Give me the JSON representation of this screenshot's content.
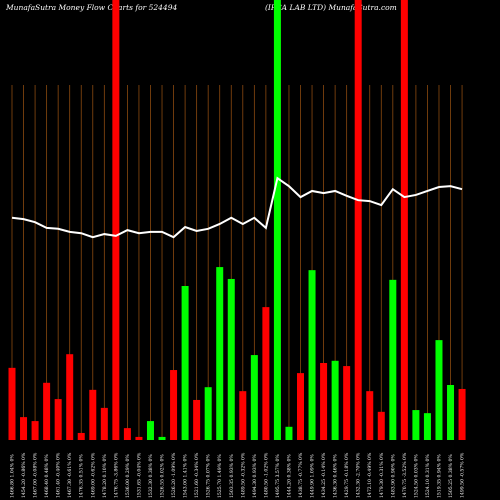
{
  "chart_data": {
    "type": "bar",
    "title": "MunafaSutra  Money Flow  Charts for 524494",
    "subtitle": "(IPCA LAB LTD) MunafaSutra.com",
    "categories": [
      "1466.80 1.04% 0%",
      "1454.20 -0.86% 0%",
      "1467.00 -0.08% 0%",
      "1468.40 0.48% 0%",
      "1461.40 -0.40% 0%",
      "1467.30 -0.61% 0%",
      "1476.35 0.51% 0%",
      "1469.00 -0.62% 0%",
      "1478.20 0.10% 0%",
      "1476.75 -3.86% 0%",
      "1536.00 0.29% 0%",
      "1531.65 -0.04% 0%",
      "1532.30 0.38% 0%",
      "1526.55 0.02% 0%",
      "1526.20 -1.09% 0%",
      "1543.00 1.41% 0%",
      "1521.60 -0.34% 0%",
      "1526.75 0.07% 0%",
      "1525.70 1.49% 0%",
      "1503.35 0.93% 0%",
      "1489.50 -0.32% 0%",
      "1494.30 0.93% 0%",
      "1480.50 -1.02% 0%",
      "1495.75 3.57% 0%",
      "1444.20 0.38% 0%",
      "1438.75 -0.77% 0%",
      "1449.90 1.09% 0%",
      "1434.25 -0.14% 0%",
      "1436.30 0.46% 0%",
      "1429.75 -0.18% 0%",
      "1432.30 -2.70% 0%",
      "1472.10 -0.49% 0%",
      "1479.30 -0.31% 0%",
      "1483.90 0.90% 0%",
      "1470.75 -3.52% 0%",
      "1524.50 0.03% 0%",
      "1524.10 0.31% 0%",
      "1519.35 0.94% 0%",
      "1505.25 0.38% 0%",
      "1499.50 -0.57% 0%"
    ],
    "values": [
      16.4,
      5.2,
      4.3,
      13.0,
      9.3,
      19.5,
      1.6,
      11.4,
      7.3,
      100,
      2.7,
      0.7,
      4.3,
      0.7,
      15.9,
      35.0,
      9.1,
      12.0,
      39.3,
      36.6,
      11.1,
      19.3,
      30.2,
      100,
      3.0,
      15.2,
      38.6,
      17.5,
      18.0,
      16.8,
      100,
      11.1,
      6.4,
      36.4,
      100,
      6.8,
      6.1,
      22.7,
      12.5,
      11.6
    ],
    "colors": [
      "#ff0000",
      "#ff0000",
      "#ff0000",
      "#ff0000",
      "#ff0000",
      "#ff0000",
      "#ff0000",
      "#ff0000",
      "#ff0000",
      "#ff0000",
      "#ff0000",
      "#ff0000",
      "#00ff00",
      "#00ff00",
      "#ff0000",
      "#00ff00",
      "#ff0000",
      "#00ff00",
      "#00ff00",
      "#00ff00",
      "#ff0000",
      "#00ff00",
      "#ff0000",
      "#00ff00",
      "#00ff00",
      "#ff0000",
      "#00ff00",
      "#ff0000",
      "#00ff00",
      "#ff0000",
      "#ff0000",
      "#ff0000",
      "#ff0000",
      "#00ff00",
      "#ff0000",
      "#00ff00",
      "#00ff00",
      "#00ff00",
      "#00ff00",
      "#ff0000"
    ],
    "line_values": [
      50.5,
      50.2,
      49.5,
      48.2,
      48.0,
      47.3,
      47.0,
      46.1,
      46.8,
      46.4,
      47.7,
      47.0,
      47.3,
      47.3,
      46.1,
      48.4,
      47.5,
      48.0,
      49.1,
      50.5,
      49.1,
      50.5,
      48.2,
      59.5,
      57.7,
      55.2,
      56.6,
      56.1,
      56.6,
      55.5,
      54.5,
      54.3,
      53.4,
      57.0,
      55.2,
      55.7,
      56.6,
      57.5,
      57.7,
      57.0
    ],
    "line_color": "#ffffff",
    "ylim": [
      0,
      100
    ]
  }
}
